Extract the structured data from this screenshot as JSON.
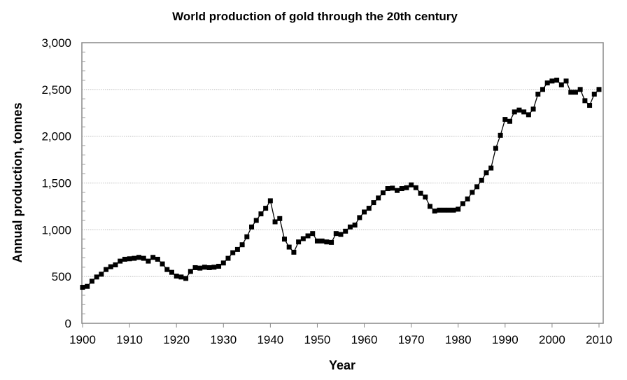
{
  "chart_data": {
    "type": "line",
    "title": "World production of gold through the 20th century",
    "xlabel": "Year",
    "ylabel": "Annual production, tonnes",
    "xlim": [
      1900,
      2010
    ],
    "ylim": [
      0,
      3000
    ],
    "x_ticks": [
      "1900",
      "1910",
      "1920",
      "1930",
      "1940",
      "1950",
      "1960",
      "1970",
      "1980",
      "1990",
      "2000",
      "2010"
    ],
    "y_ticks": [
      "0",
      "500",
      "1,000",
      "1,500",
      "2,000",
      "2,500",
      "3,000"
    ],
    "grid": "horizontal dotted",
    "marker": "square",
    "color": "#000000",
    "x": [
      1900,
      1901,
      1902,
      1903,
      1904,
      1905,
      1906,
      1907,
      1908,
      1909,
      1910,
      1911,
      1912,
      1913,
      1914,
      1915,
      1916,
      1917,
      1918,
      1919,
      1920,
      1921,
      1922,
      1923,
      1924,
      1925,
      1926,
      1927,
      1928,
      1929,
      1930,
      1931,
      1932,
      1933,
      1934,
      1935,
      1936,
      1937,
      1938,
      1939,
      1940,
      1941,
      1942,
      1943,
      1944,
      1945,
      1946,
      1947,
      1948,
      1949,
      1950,
      1951,
      1952,
      1953,
      1954,
      1955,
      1956,
      1957,
      1958,
      1959,
      1960,
      1961,
      1962,
      1963,
      1964,
      1965,
      1966,
      1967,
      1968,
      1969,
      1970,
      1971,
      1972,
      1973,
      1974,
      1975,
      1976,
      1977,
      1978,
      1979,
      1980,
      1981,
      1982,
      1983,
      1984,
      1985,
      1986,
      1987,
      1988,
      1989,
      1990,
      1991,
      1992,
      1993,
      1994,
      1995,
      1996,
      1997,
      1998,
      1999,
      2000,
      2001,
      2002,
      2003,
      2004,
      2005,
      2006,
      2007,
      2008,
      2009,
      2010
    ],
    "values": [
      385,
      395,
      450,
      495,
      525,
      575,
      605,
      625,
      665,
      685,
      690,
      695,
      705,
      695,
      665,
      705,
      685,
      635,
      575,
      545,
      505,
      495,
      480,
      555,
      595,
      590,
      600,
      595,
      600,
      610,
      645,
      695,
      755,
      790,
      840,
      925,
      1030,
      1100,
      1170,
      1230,
      1310,
      1085,
      1120,
      900,
      815,
      760,
      870,
      905,
      935,
      960,
      880,
      880,
      870,
      865,
      960,
      950,
      985,
      1030,
      1050,
      1130,
      1190,
      1230,
      1290,
      1340,
      1395,
      1440,
      1445,
      1420,
      1440,
      1450,
      1480,
      1450,
      1390,
      1350,
      1250,
      1200,
      1210,
      1210,
      1210,
      1210,
      1220,
      1280,
      1330,
      1400,
      1460,
      1530,
      1610,
      1660,
      1870,
      2010,
      2180,
      2160,
      2260,
      2280,
      2260,
      2230,
      2290,
      2450,
      2500,
      2570,
      2590,
      2600,
      2550,
      2590,
      2470,
      2470,
      2500,
      2380,
      2330,
      2450,
      2500
    ]
  }
}
